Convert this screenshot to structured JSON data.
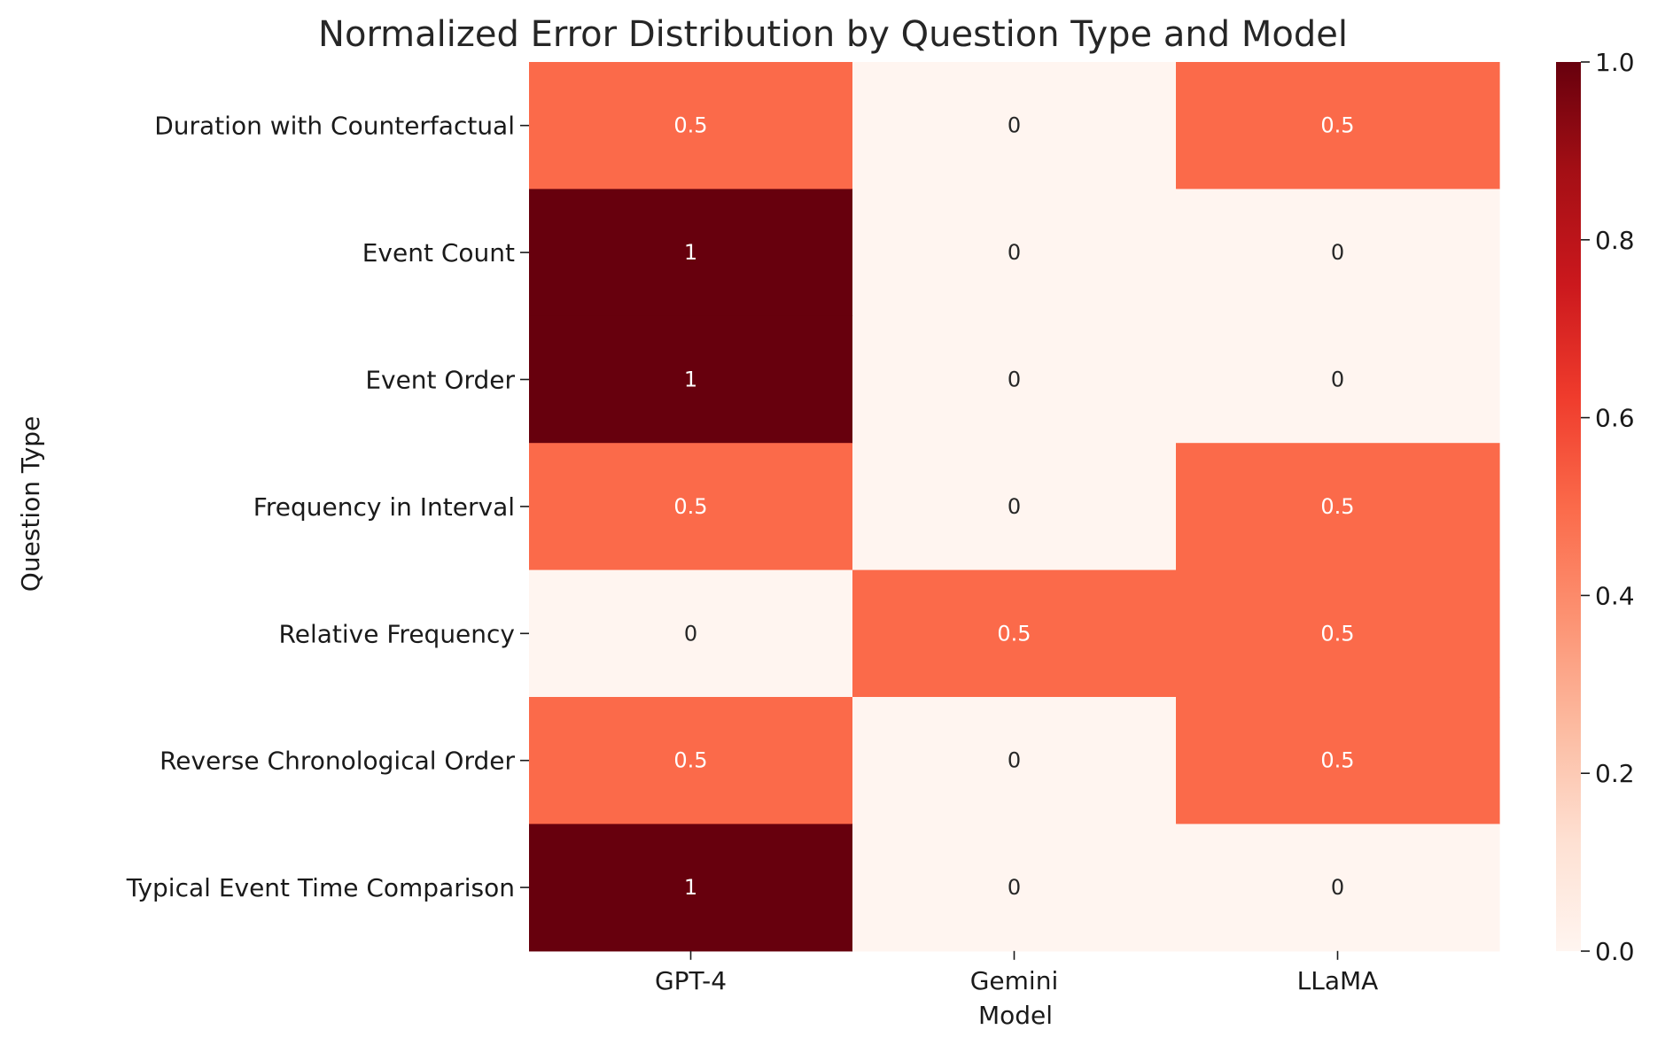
{
  "chart_data": {
    "type": "heatmap",
    "title": "Normalized Error Distribution by Question Type and Model",
    "xlabel": "Model",
    "ylabel": "Question Type",
    "x_categories": [
      "GPT-4",
      "Gemini",
      "LLaMA"
    ],
    "y_categories": [
      "Duration with Counterfactual",
      "Event Count",
      "Event Order",
      "Frequency in Interval",
      "Relative Frequency",
      "Reverse Chronological Order",
      "Typical Event Time Comparison"
    ],
    "values": [
      [
        0.5,
        0,
        0.5
      ],
      [
        1,
        0,
        0
      ],
      [
        1,
        0,
        0
      ],
      [
        0.5,
        0,
        0.5
      ],
      [
        0,
        0.5,
        0.5
      ],
      [
        0.5,
        0,
        0.5
      ],
      [
        1,
        0,
        0
      ]
    ],
    "colorscale": "Reds",
    "colorbar": {
      "range": [
        0.0,
        1.0
      ],
      "ticks": [
        "0.0",
        "0.2",
        "0.4",
        "0.6",
        "0.8",
        "1.0"
      ]
    }
  }
}
